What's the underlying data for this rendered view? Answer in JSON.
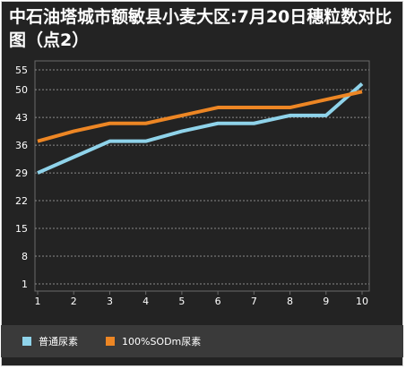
{
  "chart_data": {
    "type": "line",
    "title": "中石油塔城市额敏县小麦大区:7月20日穗粒数对比图（点2）",
    "xlabel": "",
    "ylabel": "",
    "categories": [
      "1",
      "2",
      "3",
      "4",
      "5",
      "6",
      "7",
      "8",
      "9",
      "10"
    ],
    "ylim": [
      1,
      55
    ],
    "yticks": [
      1,
      8,
      15,
      22,
      29,
      36,
      43,
      50,
      55
    ],
    "grid": true,
    "legend_position": "bottom-left",
    "series": [
      {
        "name": "普通尿素",
        "color": "#8fd3ea",
        "values": [
          29,
          33,
          37,
          37,
          39.5,
          41.5,
          41.5,
          43.5,
          43.5,
          51.5
        ]
      },
      {
        "name": "100%SODm尿素",
        "color": "#ed8624",
        "values": [
          37,
          39.5,
          41.5,
          41.5,
          43.5,
          45.5,
          45.5,
          45.5,
          47.5,
          49.5
        ]
      }
    ]
  },
  "style": {
    "background": "#232323",
    "grid_color": "#8a8a8a",
    "axis_text_color": "#ffffff"
  }
}
